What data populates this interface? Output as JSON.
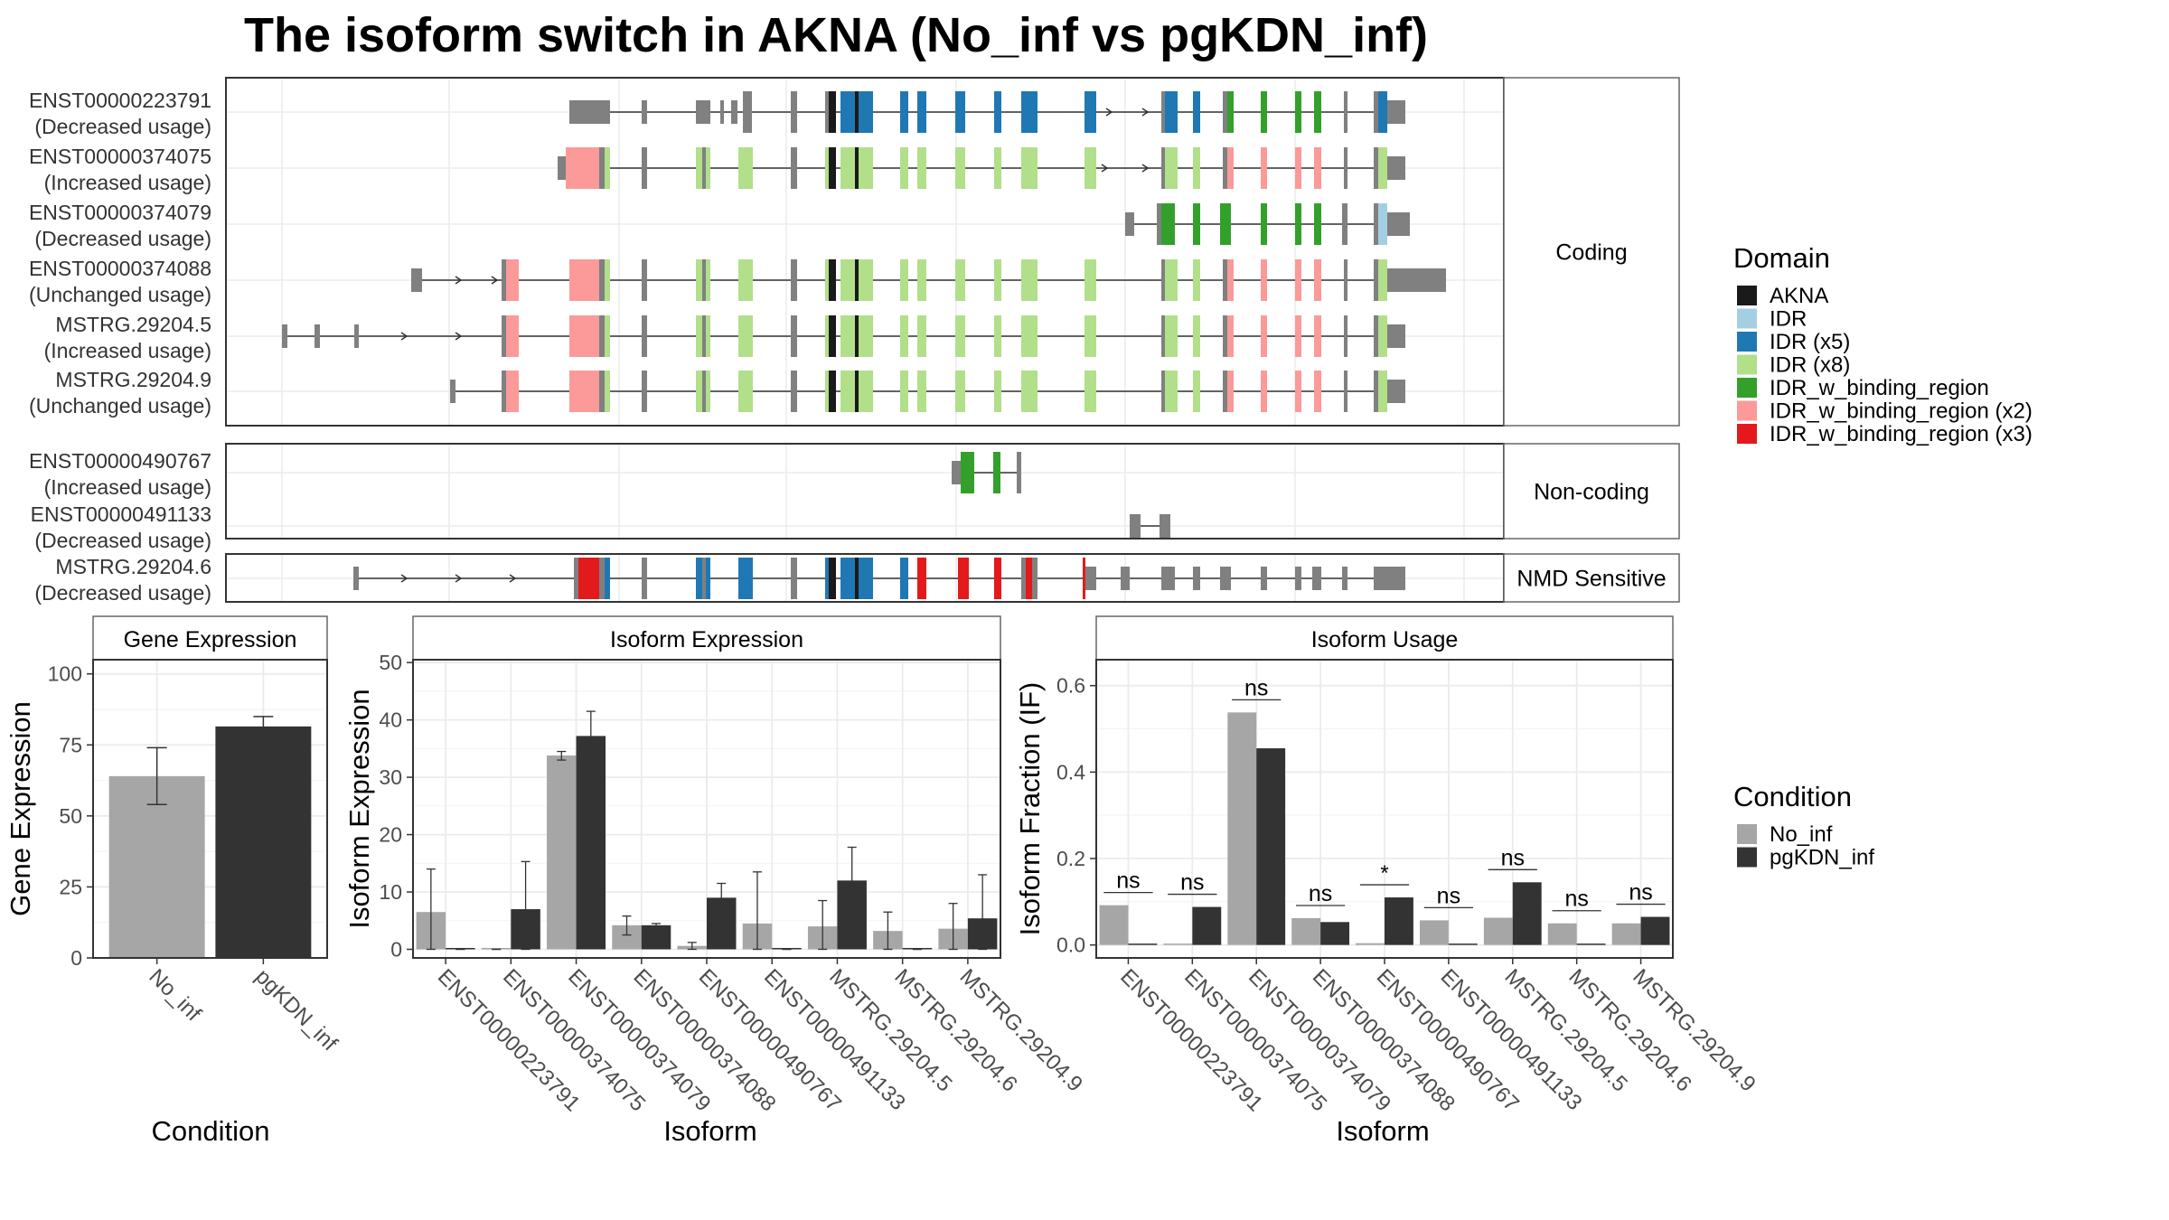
{
  "title": "The isoform switch in AKNA (No_inf vs pgKDN_inf)",
  "legend_domain": {
    "title": "Domain",
    "items": [
      {
        "name": "AKNA",
        "color": "#1a1a1a"
      },
      {
        "name": "IDR",
        "color": "#a6cee3"
      },
      {
        "name": "IDR (x5)",
        "color": "#1f78b4"
      },
      {
        "name": "IDR (x8)",
        "color": "#b2df8a"
      },
      {
        "name": "IDR_w_binding_region",
        "color": "#33a02c"
      },
      {
        "name": "IDR_w_binding_region (x2)",
        "color": "#fb9a99"
      },
      {
        "name": "IDR_w_binding_region (x3)",
        "color": "#e31a1c"
      }
    ]
  },
  "legend_condition": {
    "title": "Condition",
    "items": [
      {
        "name": "No_inf",
        "color": "#a6a6a6"
      },
      {
        "name": "pgKDN_inf",
        "color": "#333333"
      }
    ]
  },
  "structure": {
    "groups": [
      {
        "label": "Coding",
        "rows": [
          {
            "id": "ENST00000223791",
            "usage": "(Decreased usage)"
          },
          {
            "id": "ENST00000374075",
            "usage": "(Increased usage)"
          },
          {
            "id": "ENST00000374079",
            "usage": "(Decreased usage)"
          },
          {
            "id": "ENST00000374088",
            "usage": "(Unchanged usage)"
          },
          {
            "id": "MSTRG.29204.5",
            "usage": "(Increased usage)"
          },
          {
            "id": "MSTRG.29204.9",
            "usage": "(Unchanged usage)"
          }
        ]
      },
      {
        "label": "Non-coding",
        "rows": [
          {
            "id": "ENST00000490767",
            "usage": "(Increased usage)"
          },
          {
            "id": "ENST00000491133",
            "usage": "(Decreased usage)"
          }
        ]
      },
      {
        "label": "NMD Sensitive",
        "rows": [
          {
            "id": "MSTRG.29204.6",
            "usage": "(Decreased usage)"
          }
        ]
      }
    ]
  },
  "chart_data": [
    {
      "type": "bar",
      "title": "Gene Expression",
      "xlabel": "Condition",
      "ylabel": "Gene Expression",
      "categories": [
        "No_inf",
        "pgKDN_inf"
      ],
      "values": [
        64,
        81.5
      ],
      "errors": [
        [
          54,
          74
        ],
        [
          78,
          85
        ]
      ],
      "colors": [
        "#a6a6a6",
        "#333333"
      ],
      "ylim": [
        0,
        105
      ],
      "yticks": [
        0,
        25,
        50,
        75,
        100
      ]
    },
    {
      "type": "bar",
      "title": "Isoform Expression",
      "xlabel": "Isoform",
      "ylabel": "Isoform Expression",
      "categories": [
        "ENST00000223791",
        "ENST00000374075",
        "ENST00000374079",
        "ENST00000374088",
        "ENST00000490767",
        "ENST00000491133",
        "MSTRG.29204.5",
        "MSTRG.29204.6",
        "MSTRG.29204.9"
      ],
      "series": [
        {
          "name": "No_inf",
          "values": [
            6.5,
            0,
            33.8,
            4.2,
            0.6,
            4.5,
            4,
            3.2,
            3.6
          ],
          "errors": [
            [
              0,
              14
            ],
            [
              0,
              0
            ],
            [
              33,
              34.5
            ],
            [
              2.5,
              5.8
            ],
            [
              0,
              1.2
            ],
            [
              0,
              13.5
            ],
            [
              0,
              8.5
            ],
            [
              0,
              6.5
            ],
            [
              0,
              8
            ]
          ]
        },
        {
          "name": "pgKDN_inf",
          "values": [
            0,
            7,
            37.2,
            4.2,
            9,
            0,
            12,
            0,
            5.4
          ],
          "errors": [
            [
              0,
              0
            ],
            [
              0,
              15.3
            ],
            [
              33,
              41.5
            ],
            [
              3.8,
              4.5
            ],
            [
              7,
              11.5
            ],
            [
              0,
              0
            ],
            [
              7,
              17.8
            ],
            [
              0,
              0
            ],
            [
              0,
              13
            ]
          ]
        }
      ],
      "ylim": [
        -1.5,
        50.5
      ],
      "yticks": [
        0,
        10,
        20,
        30,
        40,
        50
      ]
    },
    {
      "type": "bar",
      "title": "Isoform Usage",
      "xlabel": "Isoform",
      "ylabel": "Isoform Fraction (IF)",
      "categories": [
        "ENST00000223791",
        "ENST00000374075",
        "ENST00000374079",
        "ENST00000374088",
        "ENST00000490767",
        "ENST00000491133",
        "MSTRG.29204.5",
        "MSTRG.29204.6",
        "MSTRG.29204.9"
      ],
      "series": [
        {
          "name": "No_inf",
          "values": [
            0.092,
            0,
            0.538,
            0.062,
            0.004,
            0.057,
            0.063,
            0.05,
            0.05
          ]
        },
        {
          "name": "pgKDN_inf",
          "values": [
            0,
            0.088,
            0.455,
            0.053,
            0.11,
            0,
            0.145,
            0,
            0.065
          ]
        }
      ],
      "significance": [
        "ns",
        "ns",
        "ns",
        "ns",
        "*",
        "ns",
        "ns",
        "ns",
        "ns"
      ],
      "ylim": [
        -0.03,
        0.66
      ],
      "yticks": [
        0.0,
        0.2,
        0.4,
        0.6
      ]
    }
  ]
}
